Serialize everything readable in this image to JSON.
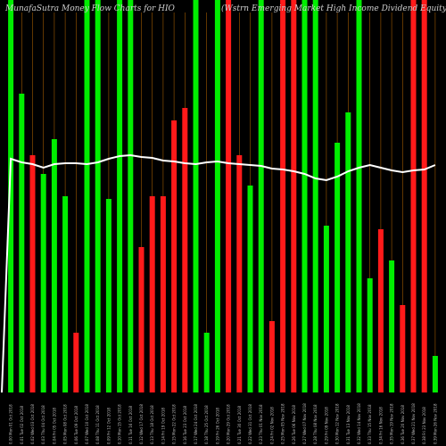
{
  "chart_data": {
    "type": "bar",
    "title_left": "MunafaSutra  Money Flow  Charts for HIO",
    "title_right": "(Wstrn Emerging Market High Income   Dividend Equity Fund) MunafaSutra.com",
    "ylim": [
      0,
      440
    ],
    "colors": {
      "up": "#00ee00",
      "down": "#ff1a1a",
      "line": "#ffffff",
      "grid": "#a05a00",
      "bg": "#000000"
    },
    "categories": [
      "0.00 Mon 01 Oct 2018",
      "0.01 Tue 02 Oct 2018",
      "0.02 Wed 03 Oct 2018",
      "0.03 Thu 04 Oct 2018",
      "0.04 Fri 05 Oct 2018",
      "0.05 Mon 08 Oct 2018",
      "0.06 Tue 09 Oct 2018",
      "0.07 Wed 10 Oct 2018",
      "0.08 Thu 11 Oct 2018",
      "0.09 Fri 12 Oct 2018",
      "0.10 Mon 15 Oct 2018",
      "0.11 Tue 16 Oct 2018",
      "0.12 Wed 17 Oct 2018",
      "0.13 Thu 18 Oct 2018",
      "0.14 Fri 19 Oct 2018",
      "0.15 Mon 22 Oct 2018",
      "0.16 Tue 23 Oct 2018",
      "0.17 Wed 24 Oct 2018",
      "0.18 Thu 25 Oct 2018",
      "0.19 Fri 26 Oct 2018",
      "0.20 Mon 29 Oct 2018",
      "0.21 Tue 30 Oct 2018",
      "0.22 Wed 31 Oct 2018",
      "0.23 Thu 01 Nov 2018",
      "0.24 Fri 02 Nov 2018",
      "0.25 Mon 05 Nov 2018",
      "0.26 Tue 06 Nov 2018",
      "0.27 Wed 07 Nov 2018",
      "0.28 Thu 08 Nov 2018",
      "0.29 Fri 09 Nov 2018",
      "0.30 Mon 12 Nov 2018",
      "0.31 Tue 13 Nov 2018",
      "0.32 Wed 14 Nov 2018",
      "0.33 Thu 15 Nov 2018",
      "0.34 Fri 16 Nov 2018",
      "0.35 Mon 19 Nov 2018",
      "0.36 Tue 20 Nov 2018",
      "0.37 Wed 21 Nov 2018",
      "0.38 Fri 23 Nov 2018",
      "0.39 Mon 26 Nov 2018"
    ],
    "values": [
      440,
      335,
      266,
      245,
      284,
      220,
      67,
      440,
      440,
      217,
      440,
      440,
      163,
      220,
      220,
      305,
      319,
      440,
      67,
      440,
      440,
      266,
      232,
      440,
      80,
      440,
      440,
      440,
      440,
      187,
      280,
      314,
      440,
      128,
      183,
      148,
      98,
      440,
      440,
      41
    ],
    "directions": [
      "up",
      "up",
      "down",
      "up",
      "up",
      "up",
      "down",
      "up",
      "up",
      "up",
      "up",
      "up",
      "down",
      "down",
      "down",
      "down",
      "down",
      "up",
      "up",
      "up",
      "down",
      "down",
      "up",
      "up",
      "down",
      "down",
      "down",
      "up",
      "up",
      "up",
      "up",
      "up",
      "up",
      "up",
      "down",
      "up",
      "down",
      "down",
      "down",
      "up"
    ],
    "money_flow_line": [
      262,
      258,
      256,
      252,
      256,
      257,
      257,
      256,
      258,
      262,
      265,
      266,
      264,
      263,
      260,
      259,
      257,
      256,
      258,
      259,
      257,
      256,
      255,
      254,
      251,
      250,
      248,
      245,
      240,
      238,
      242,
      248,
      252,
      255,
      252,
      249,
      247,
      249,
      250,
      255
    ]
  }
}
